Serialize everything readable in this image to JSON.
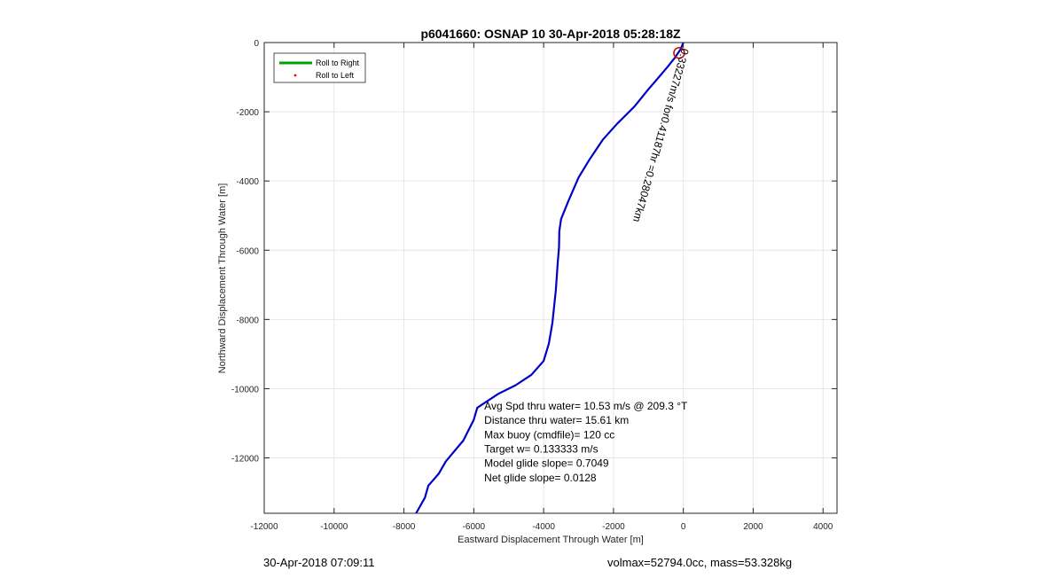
{
  "chart_data": {
    "type": "line",
    "title": "p6041660: OSNAP 10 30-Apr-2018 05:28:18Z",
    "xlabel": "Eastward Displacement Through Water [m]",
    "ylabel": "Northward Displacement Through Water [m]",
    "xlim": [
      -12000,
      4400
    ],
    "ylim": [
      -13600,
      0
    ],
    "xticks": [
      -12000,
      -10000,
      -8000,
      -6000,
      -4000,
      -2000,
      0,
      2000,
      4000
    ],
    "xtick_labels": [
      "-12000",
      "-10000",
      "-8000",
      "-6000",
      "-4000",
      "-2000",
      "0",
      "2000",
      "4000"
    ],
    "yticks": [
      0,
      -2000,
      -4000,
      -6000,
      -8000,
      -10000,
      -12000
    ],
    "ytick_labels": [
      "0",
      "-2000",
      "-4000",
      "-6000",
      "-8000",
      "-10000",
      "-12000"
    ],
    "grid": true,
    "legend": {
      "position": "top-left",
      "entries": [
        {
          "label": "Roll to Right",
          "color": "#00a000",
          "marker": "line"
        },
        {
          "label": "Roll to Left",
          "color": "#ff0000",
          "marker": "dot"
        }
      ]
    },
    "series": [
      {
        "color": "#0000c8",
        "x": [
          0,
          -80,
          -250,
          -450,
          -700,
          -1000,
          -1400,
          -1900,
          -2300,
          -2500,
          -2700,
          -3000,
          -3300,
          -3500,
          -3550,
          -3560,
          -3600,
          -3650,
          -3750,
          -3850,
          -4000,
          -4350,
          -4800,
          -5300,
          -5900,
          -6000,
          -6300,
          -6800,
          -7000,
          -7300,
          -7400,
          -7650
        ],
        "y": [
          0,
          -200,
          -450,
          -700,
          -1000,
          -1350,
          -1850,
          -2350,
          -2800,
          -3100,
          -3400,
          -3900,
          -4600,
          -5100,
          -5450,
          -5900,
          -6400,
          -7150,
          -8100,
          -8700,
          -9200,
          -9600,
          -9900,
          -10150,
          -10550,
          -10900,
          -11500,
          -12100,
          -12450,
          -12800,
          -13150,
          -13600
        ]
      }
    ],
    "current_annotation": {
      "text": "0.33227m/s for0.41187hr =0.28047km",
      "color": "#000000",
      "start": [
        -40,
        -150
      ],
      "end": [
        -1500,
        -5350
      ]
    },
    "start_marker": {
      "x": -120,
      "y": -300,
      "color": "#cc0000"
    },
    "annotations": [
      "Avg Spd thru water= 10.53 m/s @ 209.3 °T",
      "Distance thru water= 15.61 km",
      "Max buoy (cmdfile)= 120 cc",
      "Target w= 0.133333 m/s",
      "Model glide slope= 0.7049",
      "Net glide slope= 0.0128"
    ],
    "annotation_anchor": {
      "x": -5700,
      "y": -10600
    }
  },
  "footer": {
    "left": "30-Apr-2018 07:09:11",
    "right": "volmax=52794.0cc, mass=53.328kg"
  }
}
